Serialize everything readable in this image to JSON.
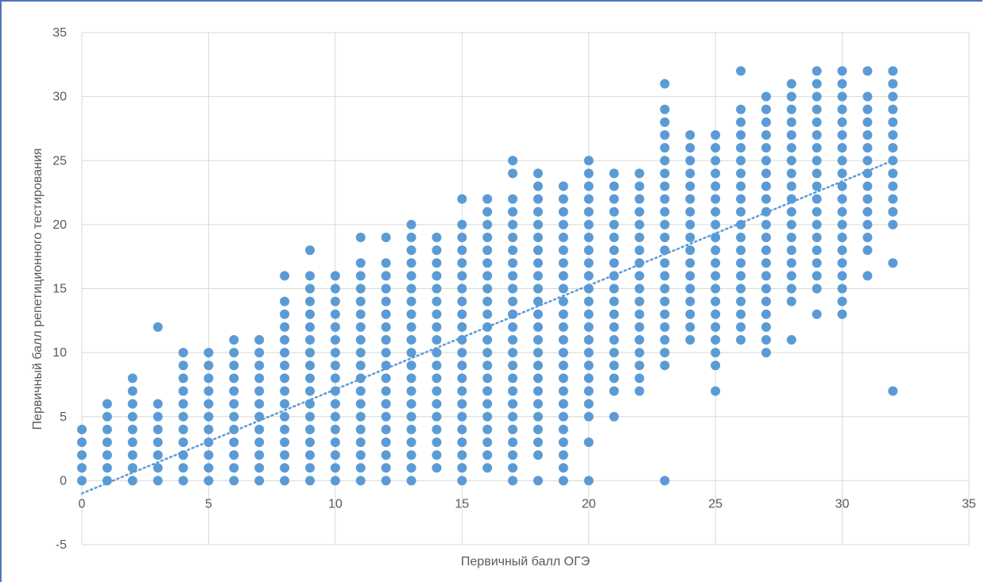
{
  "chart_data": {
    "type": "scatter",
    "title": "",
    "xlabel": "Первичный балл ОГЭ",
    "ylabel": "Первичный балл репетиционного тестирования",
    "xlim": [
      0,
      35
    ],
    "ylim": [
      -5,
      35
    ],
    "x_ticks": [
      0,
      5,
      10,
      15,
      20,
      25,
      30,
      35
    ],
    "y_ticks": [
      -5,
      0,
      5,
      10,
      15,
      20,
      25,
      30,
      35
    ],
    "grid": true,
    "legend": "none",
    "point_color": "#5b9bd5",
    "trendline": {
      "type": "linear",
      "style": "dotted",
      "x": [
        0,
        32
      ],
      "y": [
        -1,
        25
      ]
    },
    "columns": [
      {
        "x": 0,
        "y": [
          0,
          1,
          2,
          3,
          4
        ]
      },
      {
        "x": 1,
        "y": [
          0,
          1,
          2,
          3,
          4,
          5,
          6
        ]
      },
      {
        "x": 2,
        "y": [
          0,
          1,
          2,
          3,
          4,
          5,
          6,
          7,
          8
        ]
      },
      {
        "x": 3,
        "y": [
          0,
          1,
          2,
          3,
          4,
          5,
          6,
          12
        ]
      },
      {
        "x": 4,
        "y": [
          0,
          1,
          2,
          3,
          4,
          5,
          6,
          7,
          8,
          9,
          10
        ]
      },
      {
        "x": 5,
        "y": [
          0,
          1,
          2,
          3,
          4,
          5,
          6,
          7,
          8,
          9,
          10
        ]
      },
      {
        "x": 6,
        "y": [
          0,
          1,
          2,
          3,
          4,
          5,
          6,
          7,
          8,
          9,
          10,
          11
        ]
      },
      {
        "x": 7,
        "y": [
          0,
          1,
          2,
          3,
          4,
          5,
          6,
          7,
          8,
          9,
          10,
          11
        ]
      },
      {
        "x": 8,
        "y": [
          0,
          1,
          2,
          3,
          4,
          5,
          6,
          7,
          8,
          9,
          10,
          11,
          12,
          13,
          14,
          16
        ]
      },
      {
        "x": 9,
        "y": [
          0,
          1,
          2,
          3,
          4,
          5,
          6,
          7,
          8,
          9,
          10,
          11,
          12,
          13,
          14,
          15,
          16,
          18
        ]
      },
      {
        "x": 10,
        "y": [
          0,
          1,
          2,
          3,
          4,
          5,
          6,
          7,
          8,
          9,
          10,
          11,
          12,
          13,
          14,
          15,
          16
        ]
      },
      {
        "x": 11,
        "y": [
          0,
          1,
          2,
          3,
          4,
          5,
          6,
          7,
          8,
          9,
          10,
          11,
          12,
          13,
          14,
          15,
          16,
          17,
          19
        ]
      },
      {
        "x": 12,
        "y": [
          0,
          1,
          2,
          3,
          4,
          5,
          6,
          7,
          8,
          9,
          10,
          11,
          12,
          13,
          14,
          15,
          16,
          17,
          19
        ]
      },
      {
        "x": 13,
        "y": [
          0,
          1,
          2,
          3,
          4,
          5,
          6,
          7,
          8,
          9,
          10,
          11,
          12,
          13,
          14,
          15,
          16,
          17,
          18,
          19,
          20
        ]
      },
      {
        "x": 14,
        "y": [
          1,
          2,
          3,
          4,
          5,
          6,
          7,
          8,
          9,
          10,
          11,
          12,
          13,
          14,
          15,
          16,
          17,
          18,
          19
        ]
      },
      {
        "x": 15,
        "y": [
          0,
          1,
          2,
          3,
          4,
          5,
          6,
          7,
          8,
          9,
          10,
          11,
          12,
          13,
          14,
          15,
          16,
          17,
          18,
          19,
          20,
          22
        ]
      },
      {
        "x": 16,
        "y": [
          1,
          2,
          3,
          4,
          5,
          6,
          7,
          8,
          9,
          10,
          11,
          12,
          13,
          14,
          15,
          16,
          17,
          18,
          19,
          20,
          21,
          22
        ]
      },
      {
        "x": 17,
        "y": [
          0,
          1,
          2,
          3,
          4,
          5,
          6,
          7,
          8,
          9,
          10,
          11,
          12,
          13,
          14,
          15,
          16,
          17,
          18,
          19,
          20,
          21,
          22,
          24,
          25
        ]
      },
      {
        "x": 18,
        "y": [
          0,
          2,
          3,
          4,
          5,
          6,
          7,
          8,
          9,
          10,
          11,
          12,
          13,
          14,
          15,
          16,
          17,
          18,
          19,
          20,
          21,
          22,
          23,
          24
        ]
      },
      {
        "x": 19,
        "y": [
          0,
          1,
          2,
          3,
          4,
          5,
          6,
          7,
          8,
          9,
          10,
          11,
          12,
          13,
          14,
          15,
          16,
          17,
          18,
          19,
          20,
          21,
          22,
          23
        ]
      },
      {
        "x": 20,
        "y": [
          0,
          3,
          5,
          6,
          7,
          8,
          9,
          10,
          11,
          12,
          13,
          14,
          15,
          16,
          17,
          18,
          19,
          20,
          21,
          22,
          23,
          24,
          25
        ]
      },
      {
        "x": 21,
        "y": [
          5,
          7,
          8,
          9,
          10,
          11,
          12,
          13,
          14,
          15,
          16,
          17,
          18,
          19,
          20,
          21,
          22,
          23,
          24
        ]
      },
      {
        "x": 22,
        "y": [
          7,
          8,
          9,
          10,
          11,
          12,
          13,
          14,
          15,
          16,
          17,
          18,
          19,
          20,
          21,
          22,
          23,
          24
        ]
      },
      {
        "x": 23,
        "y": [
          0,
          9,
          10,
          11,
          12,
          13,
          14,
          15,
          16,
          17,
          18,
          19,
          20,
          21,
          22,
          23,
          24,
          25,
          26,
          27,
          28,
          29,
          31
        ]
      },
      {
        "x": 24,
        "y": [
          11,
          12,
          13,
          14,
          15,
          16,
          17,
          18,
          19,
          20,
          21,
          22,
          23,
          24,
          25,
          26,
          27
        ]
      },
      {
        "x": 25,
        "y": [
          7,
          9,
          10,
          11,
          12,
          13,
          14,
          15,
          16,
          17,
          18,
          19,
          20,
          21,
          22,
          23,
          24,
          25,
          26,
          27
        ]
      },
      {
        "x": 26,
        "y": [
          11,
          12,
          13,
          14,
          15,
          16,
          17,
          18,
          19,
          20,
          21,
          22,
          23,
          24,
          25,
          26,
          27,
          28,
          29,
          32
        ]
      },
      {
        "x": 27,
        "y": [
          10,
          11,
          12,
          13,
          14,
          15,
          16,
          17,
          18,
          19,
          20,
          21,
          22,
          23,
          24,
          25,
          26,
          27,
          28,
          29,
          30
        ]
      },
      {
        "x": 28,
        "y": [
          11,
          14,
          15,
          16,
          17,
          18,
          19,
          20,
          21,
          22,
          23,
          24,
          25,
          26,
          27,
          28,
          29,
          30,
          31
        ]
      },
      {
        "x": 29,
        "y": [
          13,
          15,
          16,
          17,
          18,
          19,
          20,
          21,
          22,
          23,
          24,
          25,
          26,
          27,
          28,
          29,
          30,
          31,
          32
        ]
      },
      {
        "x": 30,
        "y": [
          13,
          14,
          15,
          16,
          17,
          18,
          19,
          20,
          21,
          22,
          23,
          24,
          25,
          26,
          27,
          28,
          29,
          30,
          31,
          32
        ]
      },
      {
        "x": 31,
        "y": [
          16,
          18,
          19,
          20,
          21,
          22,
          23,
          24,
          25,
          26,
          27,
          28,
          29,
          30,
          32
        ]
      },
      {
        "x": 32,
        "y": [
          7,
          17,
          20,
          21,
          22,
          23,
          24,
          25,
          26,
          27,
          28,
          29,
          30,
          31,
          32
        ]
      }
    ]
  }
}
